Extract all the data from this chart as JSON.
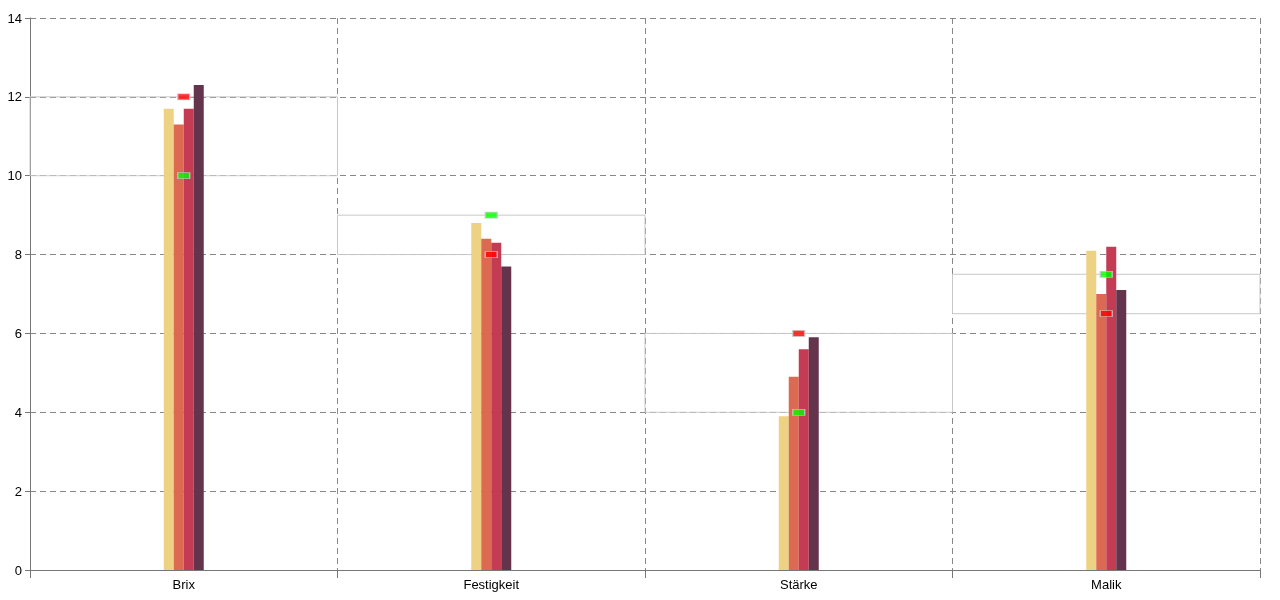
{
  "chart_data": {
    "type": "bar",
    "categories": [
      "Brix",
      "Festigkeit",
      "Stärke",
      "Malik"
    ],
    "series": [
      {
        "color": "#ecd282",
        "values": [
          11.7,
          8.8,
          3.9,
          8.1
        ]
      },
      {
        "color": "#dc6a52",
        "values": [
          11.3,
          8.4,
          4.9,
          7.0
        ]
      },
      {
        "color": "#c43c54",
        "values": [
          11.7,
          8.3,
          5.6,
          8.2
        ]
      },
      {
        "color": "#64344c",
        "values": [
          12.3,
          7.7,
          5.9,
          7.1
        ]
      },
      {
        "type": "bar",
        "base": [
          10,
          8,
          4,
          6.5
        ],
        "values": [
          2,
          1,
          2,
          1
        ],
        "color": "#c8c8c8"
      },
      {
        "type": "scatter",
        "x": [
          "Brix",
          "Festigkeit",
          "Stärke",
          "Malik"
        ],
        "values": [
          12,
          8,
          6,
          6.5
        ],
        "color": "#ff0000"
      },
      {
        "type": "scatter",
        "x": [
          "Brix",
          "Festigkeit",
          "Stärke",
          "Malik"
        ],
        "values": [
          10,
          9,
          4,
          7.5
        ],
        "color": "#00ff00"
      }
    ],
    "ylim": [
      0,
      14
    ],
    "yticks": [
      0,
      2,
      4,
      6,
      8,
      10,
      12,
      14
    ],
    "grid": true,
    "marker": "square"
  }
}
